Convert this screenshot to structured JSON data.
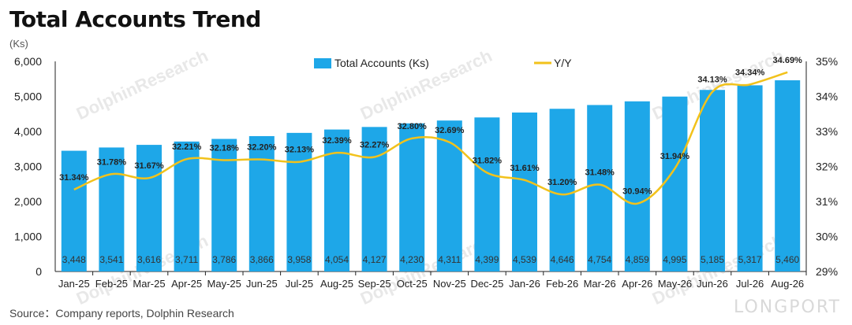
{
  "header": {
    "title": "Total Accounts Trend",
    "unit": "(Ks)"
  },
  "footer": {
    "source": "Source：Company reports, Dolphin Research"
  },
  "watermarks": {
    "text": "DolphinResearch",
    "logo": "LONGPORT"
  },
  "colors": {
    "bar": "#1ea7e8",
    "line": "#f2c21b",
    "axis": "#222222"
  },
  "chart_data": {
    "type": "bar+line",
    "categories": [
      "Jan-25",
      "Feb-25",
      "Mar-25",
      "Apr-25",
      "May-25",
      "Jun-25",
      "Jul-25",
      "Aug-25",
      "Sep-25",
      "Oct-25",
      "Nov-25",
      "Dec-25",
      "Jan-26",
      "Feb-26",
      "Mar-26",
      "Apr-26",
      "May-26",
      "Jun-26",
      "Jul-26",
      "Aug-26"
    ],
    "series": [
      {
        "name": "Total Accounts (Ks)",
        "type": "bar",
        "axis": "left",
        "values": [
          3448,
          3541,
          3616,
          3711,
          3786,
          3866,
          3958,
          4054,
          4127,
          4230,
          4311,
          4399,
          4539,
          4646,
          4754,
          4859,
          4995,
          5185,
          5317,
          5460
        ],
        "labels": [
          "3,448",
          "3,541",
          "3,616",
          "3,711",
          "3,786",
          "3,866",
          "3,958",
          "4,054",
          "4,127",
          "4,230",
          "4,311",
          "4,399",
          "4,539",
          "4,646",
          "4,754",
          "4,859",
          "4,995",
          "5,185",
          "5,317",
          "5,460"
        ]
      },
      {
        "name": "Y/Y",
        "type": "line",
        "axis": "right",
        "values": [
          31.34,
          31.78,
          31.67,
          32.21,
          32.18,
          32.2,
          32.13,
          32.39,
          32.27,
          32.8,
          32.69,
          31.82,
          31.61,
          31.2,
          31.48,
          30.94,
          31.94,
          34.13,
          34.34,
          34.69
        ],
        "labels": [
          "31.34%",
          "31.78%",
          "31.67%",
          "32.21%",
          "32.18%",
          "32.20%",
          "32.13%",
          "32.39%",
          "32.27%",
          "32.80%",
          "32.69%",
          "31.82%",
          "31.61%",
          "31.20%",
          "31.48%",
          "30.94%",
          "31.94%",
          "34.13%",
          "34.34%",
          "34.69%"
        ]
      }
    ],
    "left_axis": {
      "ylim": [
        0,
        6000
      ],
      "ticks": [
        "0",
        "1,000",
        "2,000",
        "3,000",
        "4,000",
        "5,000",
        "6,000"
      ]
    },
    "right_axis": {
      "ylim": [
        29,
        35
      ],
      "ticks": [
        "29%",
        "30%",
        "31%",
        "32%",
        "33%",
        "34%",
        "35%"
      ]
    },
    "legend": {
      "placement": "top-center",
      "items": [
        "Total Accounts (Ks)",
        "Y/Y"
      ]
    },
    "grid": false
  }
}
